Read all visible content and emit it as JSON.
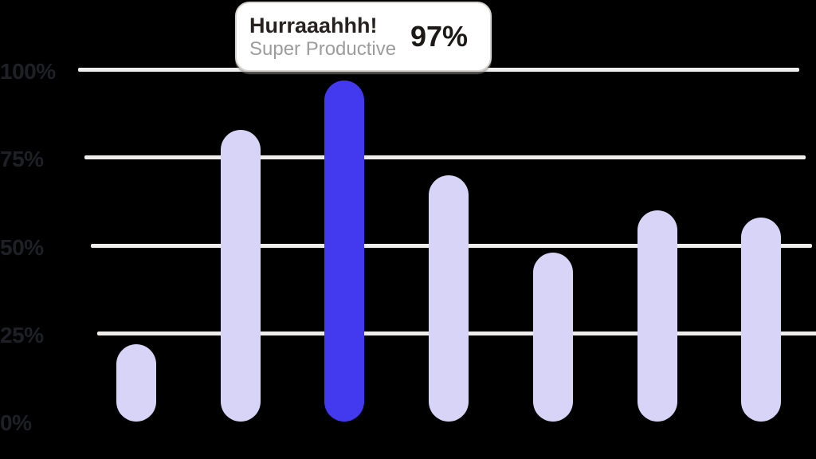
{
  "chart_data": {
    "type": "bar",
    "title": "",
    "xlabel": "",
    "ylabel": "",
    "categories": [
      "",
      "",
      "",
      "",
      "",
      "",
      ""
    ],
    "values": [
      22,
      83,
      97,
      70,
      48,
      60,
      58
    ],
    "highlight_index": 2,
    "highlight_value_label": "97%",
    "y_ticks": [
      "100%",
      "75%",
      "50%",
      "25%",
      "0%"
    ],
    "ylim": [
      0,
      100
    ],
    "grid": "horizontal gridlines at 100/75/50/25, none at 0",
    "legend": "none",
    "colors": {
      "bar": "#d8d4f8",
      "bar_highlight": "#433af0",
      "gridline": "#efeeec",
      "tick_label": "#1e2026",
      "background": "#000000",
      "tooltip_background": "#ffffff",
      "tooltip_border": "#d8d4d2",
      "tooltip_title_text": "#272220",
      "tooltip_subtitle_text": "#9c9c9c",
      "tooltip_value_text": "#1c1918"
    }
  },
  "tooltip": {
    "title": "Hurraaahhh!",
    "subtitle": "Super Productive",
    "value": "97%"
  }
}
